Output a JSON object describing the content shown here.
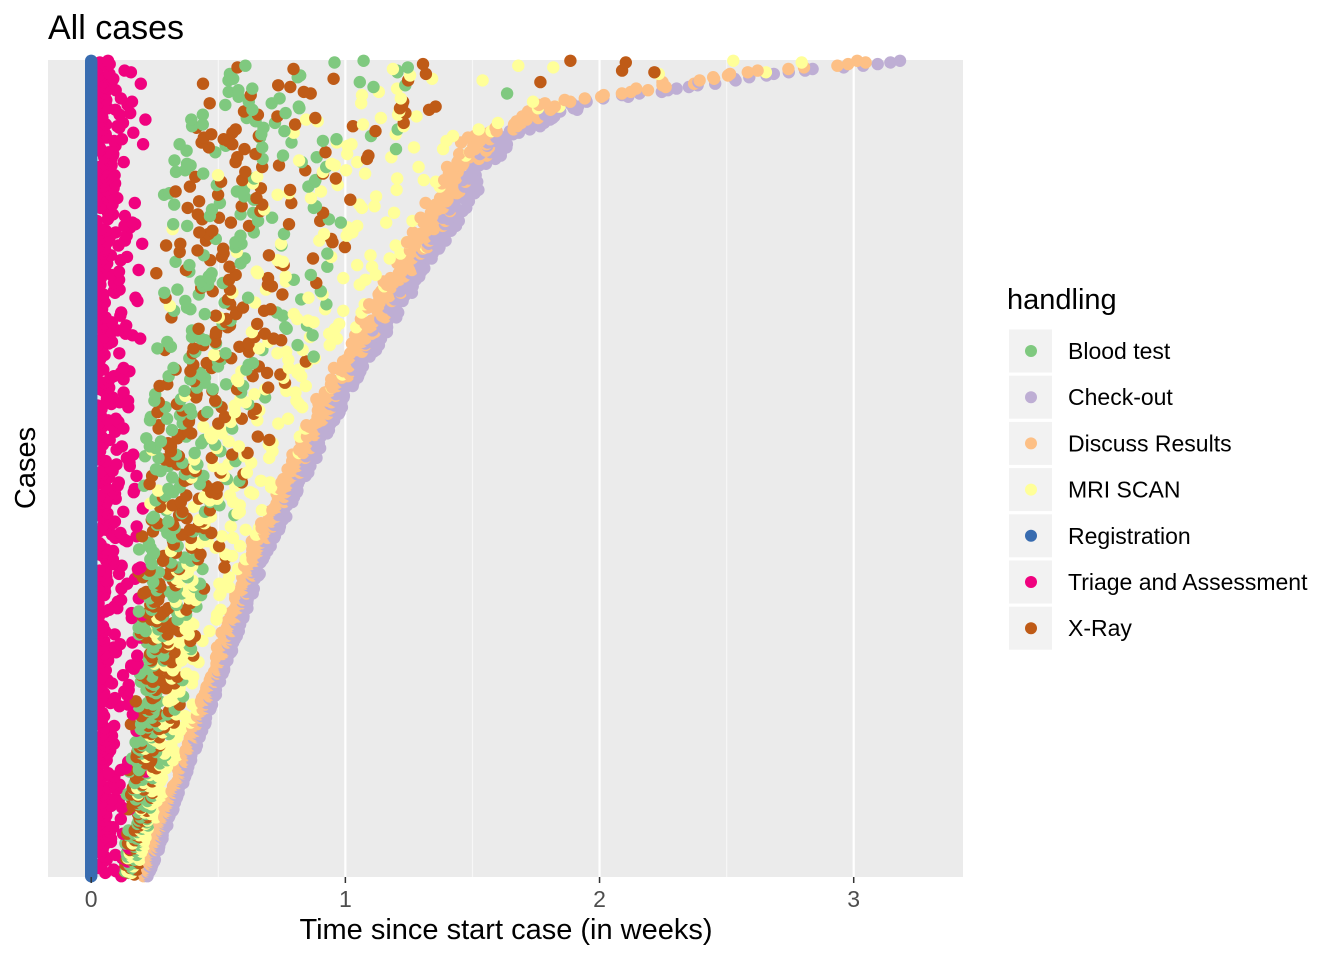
{
  "chart_data": {
    "type": "scatter",
    "title": "All cases",
    "xlabel": "Time since start case (in weeks)",
    "ylabel": "Cases",
    "xlim": [
      -0.17,
      3.43
    ],
    "x_ticks": [
      "0",
      "1",
      "2",
      "3"
    ],
    "x_tick_values": [
      0,
      1,
      2,
      3
    ],
    "y_ticks": [],
    "grid": true,
    "legend_placement": "right",
    "legend": {
      "title": "handling",
      "entries": [
        {
          "name": "Blood test",
          "color": "#7FC97F"
        },
        {
          "name": "Check-out",
          "color": "#BEAED4"
        },
        {
          "name": "Discuss Results",
          "color": "#FDC086"
        },
        {
          "name": "MRI SCAN",
          "color": "#FFFF99"
        },
        {
          "name": "Registration",
          "color": "#386CB0"
        },
        {
          "name": "Triage and Assessment",
          "color": "#F0027F"
        },
        {
          "name": "X-Ray",
          "color": "#BF5B17"
        }
      ]
    },
    "n_cases": 500,
    "case_durations_weeks_by_rank": [
      [
        0.0,
        0.22
      ],
      [
        0.2,
        0.45
      ],
      [
        0.4,
        0.68
      ],
      [
        0.6,
        1.0
      ],
      [
        0.75,
        1.3
      ],
      [
        0.9,
        1.6
      ],
      [
        0.95,
        1.95
      ],
      [
        0.985,
        2.7
      ],
      [
        1.0,
        3.27
      ]
    ],
    "colors": {
      "panel_background": "#EBEBEB",
      "grid_major": "#FFFFFF",
      "grid_minor": "#F7F7F7",
      "tick_label": "#4D4D4D",
      "legend_key_background": "#F2F2F2"
    }
  }
}
